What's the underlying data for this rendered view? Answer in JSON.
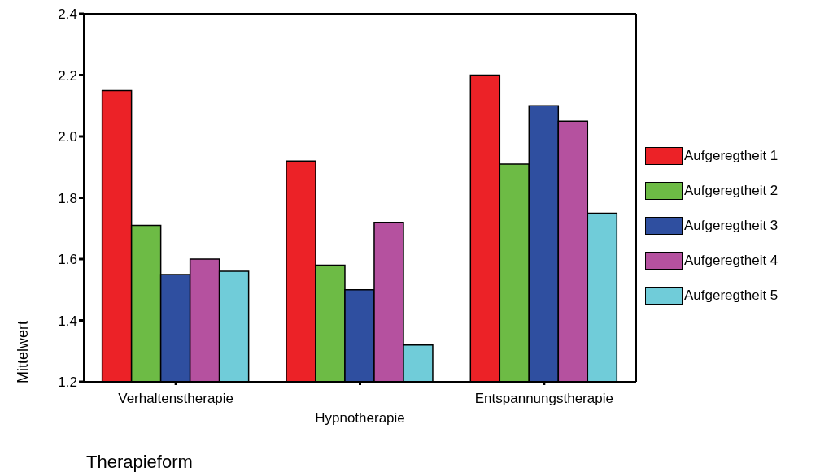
{
  "chart_data": {
    "type": "bar",
    "xlabel": "Therapieform",
    "ylabel": "Mittelwert",
    "categories": [
      "Verhaltenstherapie",
      "Hypnotherapie",
      "Entspannungstherapie"
    ],
    "series": [
      {
        "name": "Aufgeregtheit 1",
        "color": "#ec2227",
        "values": [
          2.15,
          1.92,
          2.2
        ]
      },
      {
        "name": "Aufgeregtheit 2",
        "color": "#6dbb45",
        "values": [
          1.71,
          1.58,
          1.91
        ]
      },
      {
        "name": "Aufgeregtheit 3",
        "color": "#2f4fa0",
        "values": [
          1.55,
          1.5,
          2.1
        ]
      },
      {
        "name": "Aufgeregtheit 4",
        "color": "#b5519f",
        "values": [
          1.6,
          1.72,
          2.05
        ]
      },
      {
        "name": "Aufgeregtheit 5",
        "color": "#70ccd9",
        "values": [
          1.56,
          1.32,
          1.75
        ]
      }
    ],
    "ylim": [
      1.2,
      2.4
    ],
    "yticks": [
      1.2,
      1.4,
      1.6,
      1.8,
      {
        "value": 2,
        "label": "2.0"
      },
      2.2,
      2.4
    ],
    "grid": false,
    "legend": "right"
  }
}
